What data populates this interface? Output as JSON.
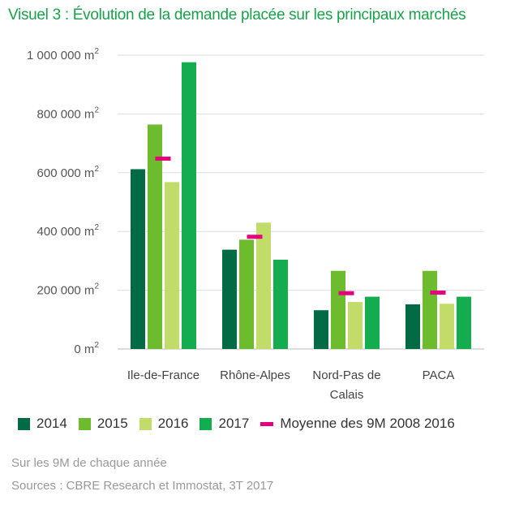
{
  "title": "Visuel 3 : Évolution de la demande placée sur les principaux marchés",
  "notes": {
    "line1": "Sur les 9M de chaque année",
    "line2": "Sources : CBRE Research et Immostat, 3T 2017"
  },
  "colors": {
    "2014": "#006b45",
    "2015": "#6cbc2d",
    "2016": "#c2dc6a",
    "2017": "#13ac4f",
    "average": "#e6007e",
    "title": "#1aa24a"
  },
  "chart_data": {
    "type": "bar",
    "categories": [
      [
        "Ile-de-France"
      ],
      [
        "Rhône-Alpes"
      ],
      [
        "Nord-Pas de",
        "Calais"
      ],
      [
        "PACA"
      ]
    ],
    "series": [
      {
        "name": "2014",
        "values": [
          612000,
          338000,
          132000,
          152000
        ]
      },
      {
        "name": "2015",
        "values": [
          764000,
          372000,
          266000,
          266000
        ]
      },
      {
        "name": "2016",
        "values": [
          568000,
          430000,
          160000,
          154000
        ]
      },
      {
        "name": "2017",
        "values": [
          976000,
          304000,
          178000,
          178000
        ]
      }
    ],
    "average": {
      "name": "Moyenne des 9M 2008 2016",
      "values": [
        648000,
        382000,
        190000,
        192000
      ]
    },
    "ylim": [
      0,
      1000000
    ],
    "yticks": [
      {
        "value": 0,
        "label": "0 m²"
      },
      {
        "value": 200000,
        "label": "200 000 m²"
      },
      {
        "value": 400000,
        "label": "400 000 m²"
      },
      {
        "value": 600000,
        "label": "600 000 m²"
      },
      {
        "value": 800000,
        "label": "800 000 m²"
      },
      {
        "value": 1000000,
        "label": "1 000 000 m²"
      }
    ],
    "grid": true,
    "legend": "bottom"
  }
}
